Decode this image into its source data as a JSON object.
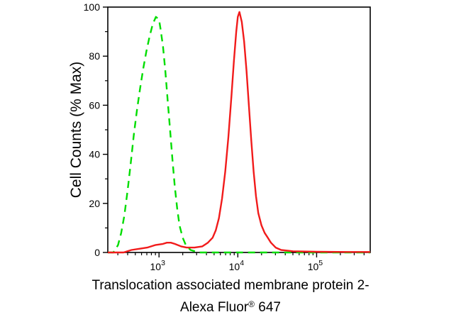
{
  "figure": {
    "y_axis_title": "Cell Counts (% Max)",
    "caption": {
      "line1": "Translocation associated membrane protein 2-",
      "line2_pre": "Alexa Fluor",
      "line2_sup": "®",
      "line2_post": " 647"
    },
    "colors": {
      "background": "#ffffff",
      "axis": "#000000",
      "green_curve": "#00dd00",
      "red_curve": "#f11b1b"
    }
  },
  "chart_data": {
    "type": "line",
    "title": "",
    "xlabel": "Translocation associated membrane protein 2-Alexa Fluor® 647",
    "ylabel": "Cell Counts (% Max)",
    "x_scale": "log10",
    "xlim_log10": [
      2.35,
      5.68
    ],
    "ylim": [
      0,
      100
    ],
    "x_major_ticks_log10": [
      3,
      4,
      5
    ],
    "y_major_ticks": [
      0,
      20,
      40,
      60,
      80,
      100
    ],
    "y_minor_ticks": [
      10,
      30,
      50,
      70,
      90
    ],
    "grid": false,
    "legend": "none",
    "series": [
      {
        "name": "green_dashed",
        "color": "#00dd00",
        "style": "dashed",
        "points_log10x_y": [
          [
            2.35,
            0
          ],
          [
            2.42,
            0
          ],
          [
            2.48,
            3
          ],
          [
            2.52,
            8
          ],
          [
            2.56,
            15
          ],
          [
            2.6,
            25
          ],
          [
            2.64,
            36
          ],
          [
            2.68,
            48
          ],
          [
            2.72,
            58
          ],
          [
            2.76,
            67
          ],
          [
            2.8,
            75
          ],
          [
            2.84,
            82
          ],
          [
            2.88,
            88
          ],
          [
            2.92,
            93
          ],
          [
            2.96,
            96
          ],
          [
            3.0,
            95
          ],
          [
            3.02,
            91
          ],
          [
            3.05,
            84
          ],
          [
            3.08,
            74
          ],
          [
            3.11,
            62
          ],
          [
            3.14,
            50
          ],
          [
            3.17,
            38
          ],
          [
            3.2,
            27
          ],
          [
            3.23,
            18
          ],
          [
            3.26,
            11
          ],
          [
            3.3,
            6
          ],
          [
            3.34,
            3
          ],
          [
            3.4,
            1
          ],
          [
            3.5,
            0
          ],
          [
            4.0,
            0
          ],
          [
            4.6,
            0
          ],
          [
            5.68,
            0
          ]
        ]
      },
      {
        "name": "red_solid",
        "color": "#f11b1b",
        "style": "solid",
        "points_log10x_y": [
          [
            2.35,
            0
          ],
          [
            2.55,
            0
          ],
          [
            2.65,
            1
          ],
          [
            2.75,
            1.5
          ],
          [
            2.85,
            2
          ],
          [
            2.95,
            3
          ],
          [
            3.05,
            3.5
          ],
          [
            3.1,
            4
          ],
          [
            3.15,
            4
          ],
          [
            3.2,
            3.5
          ],
          [
            3.28,
            2.5
          ],
          [
            3.35,
            2
          ],
          [
            3.45,
            2
          ],
          [
            3.55,
            2.5
          ],
          [
            3.62,
            4
          ],
          [
            3.68,
            6
          ],
          [
            3.72,
            9
          ],
          [
            3.76,
            14
          ],
          [
            3.8,
            22
          ],
          [
            3.84,
            33
          ],
          [
            3.88,
            47
          ],
          [
            3.92,
            64
          ],
          [
            3.95,
            78
          ],
          [
            3.98,
            90
          ],
          [
            4.0,
            96
          ],
          [
            4.02,
            98
          ],
          [
            4.05,
            94
          ],
          [
            4.08,
            86
          ],
          [
            4.11,
            74
          ],
          [
            4.14,
            60
          ],
          [
            4.17,
            46
          ],
          [
            4.2,
            33
          ],
          [
            4.23,
            23
          ],
          [
            4.26,
            16
          ],
          [
            4.3,
            11
          ],
          [
            4.34,
            8
          ],
          [
            4.38,
            6
          ],
          [
            4.42,
            4
          ],
          [
            4.48,
            2
          ],
          [
            4.55,
            1
          ],
          [
            4.7,
            0.5
          ],
          [
            5.0,
            0.3
          ],
          [
            5.4,
            0.2
          ],
          [
            5.68,
            0.2
          ]
        ]
      }
    ]
  }
}
